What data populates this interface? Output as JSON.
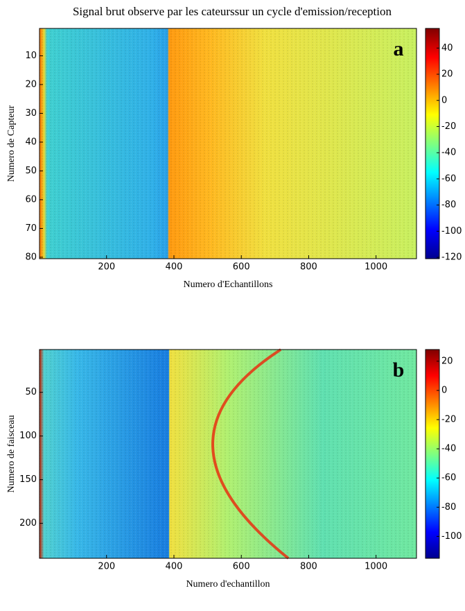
{
  "chart_data": [
    {
      "type": "heatmap",
      "title": "Signal brut observe par les cateurssur un cycle d'emission/reception",
      "xlabel": "Numero d'Echantillons",
      "ylabel": "Numero de Capteur",
      "panel_label": "a",
      "xlim": [
        1,
        1120
      ],
      "xticks": [
        200,
        400,
        600,
        800,
        1000
      ],
      "ylim": [
        0.5,
        80.5
      ],
      "yticks": [
        10,
        20,
        30,
        40,
        50,
        60,
        70,
        80
      ],
      "clim": [
        -121,
        55
      ],
      "cticks": [
        40,
        20,
        0,
        -20,
        -40,
        -60,
        -80,
        -100,
        -120
      ],
      "colormap": "jet"
    },
    {
      "type": "heatmap",
      "xlabel": "Numero d'echantillon",
      "ylabel": "Numero de faisceau",
      "panel_label": "b",
      "xlim": [
        1,
        1120
      ],
      "xticks": [
        200,
        400,
        600,
        800,
        1000
      ],
      "ylim": [
        1,
        240
      ],
      "yticks": [
        50,
        100,
        150,
        200
      ],
      "clim": [
        -115,
        28
      ],
      "cticks": [
        20,
        0,
        -20,
        -40,
        -60,
        -80,
        -100
      ],
      "colormap": "jet"
    }
  ]
}
